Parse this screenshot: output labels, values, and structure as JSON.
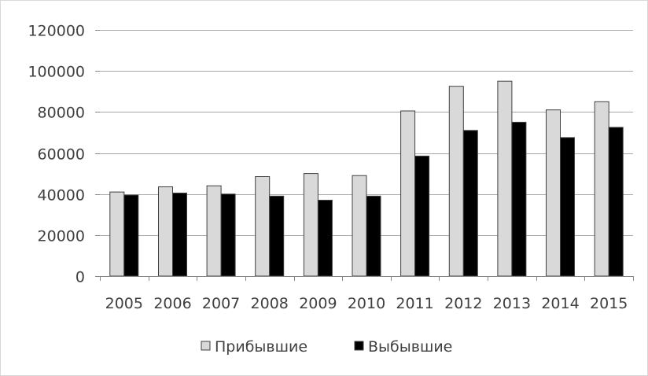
{
  "chart_data": {
    "type": "bar",
    "title": "",
    "xlabel": "",
    "ylabel": "",
    "categories": [
      "2005",
      "2006",
      "2007",
      "2008",
      "2009",
      "2010",
      "2011",
      "2012",
      "2013",
      "2014",
      "2015"
    ],
    "series": [
      {
        "name": "Прибывшие",
        "color": "#d9d9d9",
        "values": [
          41000,
          43500,
          44000,
          48500,
          50000,
          49000,
          80500,
          92500,
          95000,
          81000,
          85000
        ]
      },
      {
        "name": "Выбывшие",
        "color": "#000000",
        "values": [
          39500,
          40500,
          40000,
          39000,
          37000,
          39000,
          58500,
          71000,
          75000,
          67500,
          72500
        ]
      }
    ],
    "ylim": [
      0,
      120000
    ],
    "yticks": [
      "0",
      "20000",
      "40000",
      "60000",
      "80000",
      "100000",
      "120000"
    ],
    "grid": true,
    "legend_position": "bottom"
  }
}
